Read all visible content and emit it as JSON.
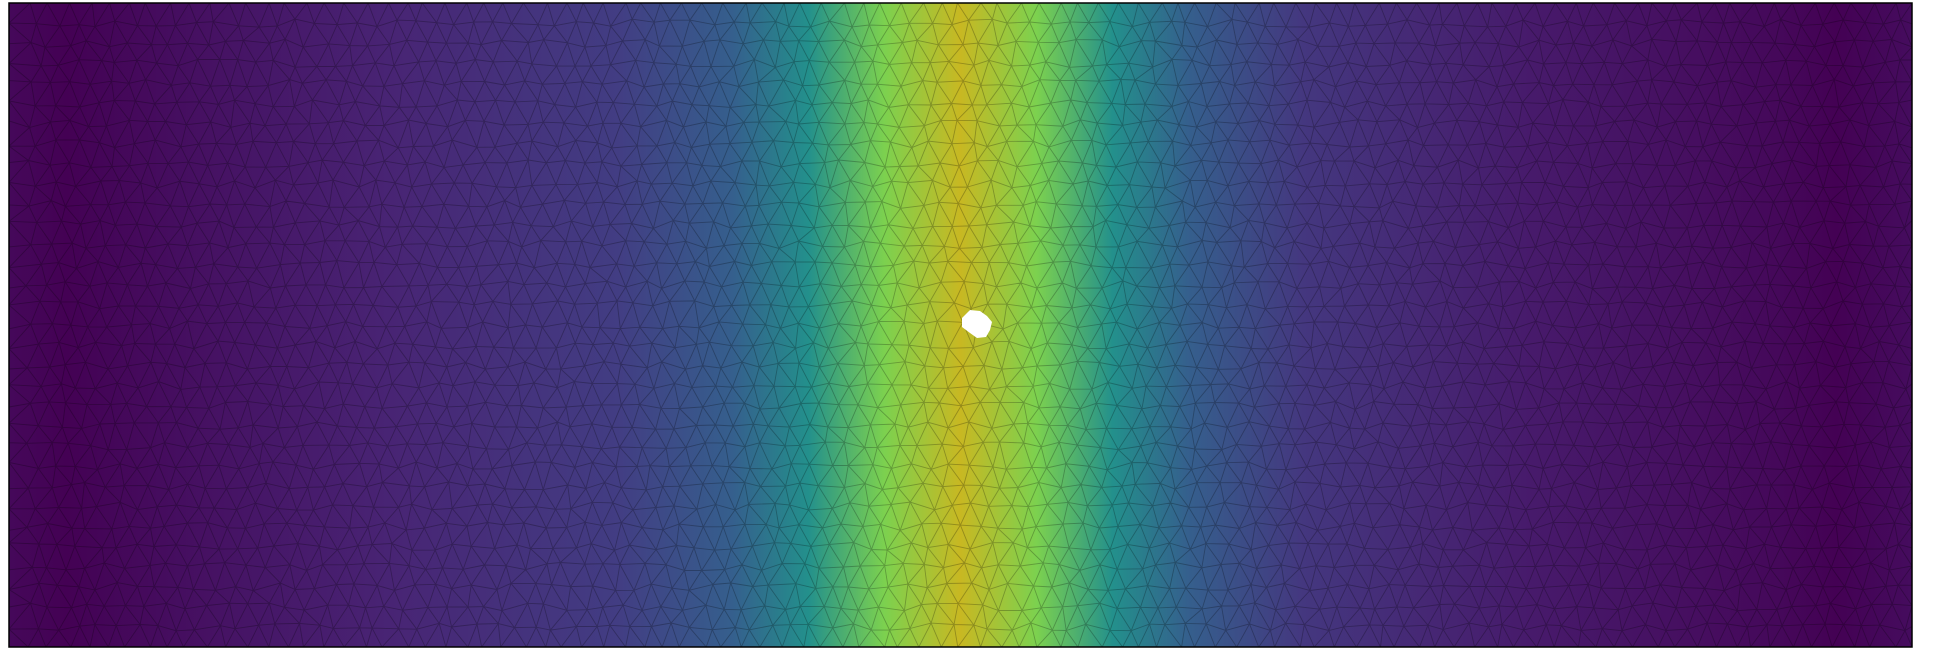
{
  "figure": {
    "kind": "finite-element mesh with scalar field",
    "colormap": "viridis",
    "field_profile": "band",
    "mesh": {
      "element_type": "triangle",
      "columns": 96,
      "rows": 32,
      "jitter_fraction": 0.2,
      "edge_color": "#000000",
      "edge_opacity": 0.25
    },
    "domain_border_color": "#000000",
    "background_color": "#ffffff",
    "field_levels": {
      "left_edge": 0.02,
      "left_trough": 0.0,
      "left_plateau": 0.1,
      "center_peak": 0.9,
      "right_plateau": 0.07,
      "right_trough": 0.0,
      "right_edge": 0.03
    },
    "colors": {
      "v0": "#440154",
      "v1": "#482878",
      "v2": "#3e4a89",
      "v3": "#31688e",
      "v4": "#26828e",
      "v5": "#1f9e89",
      "v6": "#35b779",
      "v7": "#6ece58",
      "v8": "#b5de2b",
      "v9": "#fde725",
      "center_yellow": "#c8b822"
    },
    "hole": {
      "present": true,
      "fill": "#ffffff"
    }
  }
}
